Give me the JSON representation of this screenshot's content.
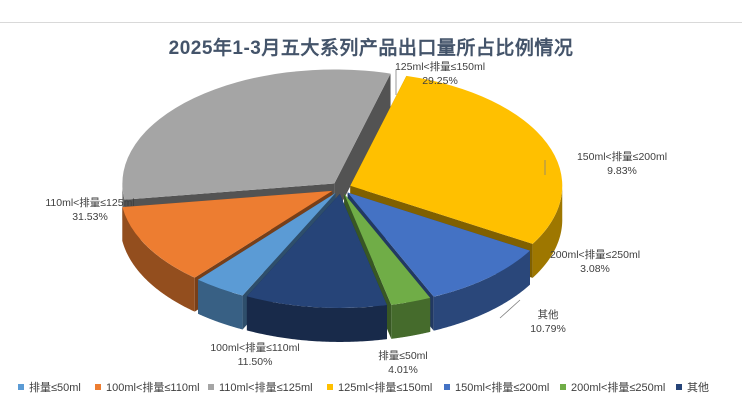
{
  "chart_data": {
    "type": "pie",
    "title": "2025年1-3月五大系列产品出口量所占比例情况",
    "slices": [
      {
        "label": "排量≤50ml",
        "value": 4.01,
        "value_label": "4.01%",
        "color": "#5b9bd5"
      },
      {
        "label": "100ml<排量≤110ml",
        "value": 11.5,
        "value_label": "11.50%",
        "color": "#ed7d31"
      },
      {
        "label": "110ml<排量≤125ml",
        "value": 31.53,
        "value_label": "31.53%",
        "color": "#a5a5a5"
      },
      {
        "label": "125ml<排量≤150ml",
        "value": 29.25,
        "value_label": "29.25%",
        "color": "#ffc000"
      },
      {
        "label": "150ml<排量≤200ml",
        "value": 9.83,
        "value_label": "9.83%",
        "color": "#4472c4"
      },
      {
        "label": "200ml<排量≤250ml",
        "value": 3.08,
        "value_label": "3.08%",
        "color": "#70ad47"
      },
      {
        "label": "其他",
        "value": 10.79,
        "value_label": "10.79%",
        "color": "#264478"
      }
    ],
    "legend_position": "bottom",
    "style": "3d-exploded"
  }
}
